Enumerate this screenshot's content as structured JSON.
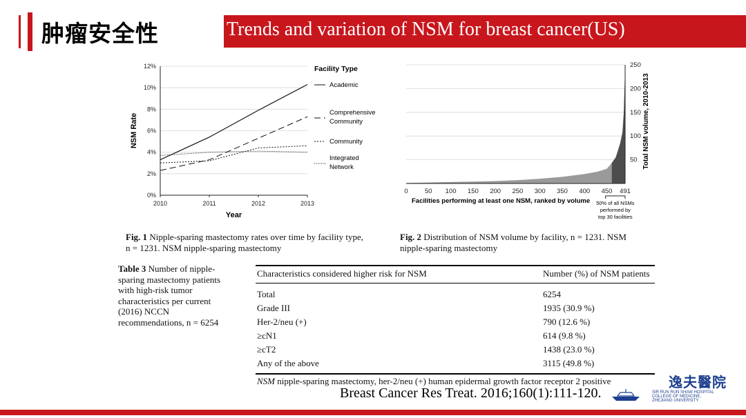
{
  "header": {
    "title_cn": "肿瘤安全性",
    "title_en": "Trends and variation of NSM for breast cancer(US)"
  },
  "colors": {
    "accent": "#c8161d",
    "logo_blue": "#1d3f8f"
  },
  "fig1": {
    "caption_bold": "Fig. 1",
    "caption_text": "Nipple-sparing mastectomy rates over time by facility type,",
    "caption_line2": "n = 1231. NSM nipple-sparing mastectomy",
    "legend_title": "Facility Type",
    "legend": [
      {
        "line1": "Academic",
        "line2": ""
      },
      {
        "line1": "Comprehensive",
        "line2": "Community"
      },
      {
        "line1": "Community",
        "line2": ""
      },
      {
        "line1": "Integrated",
        "line2": "Network"
      }
    ]
  },
  "fig2": {
    "caption_bold": "Fig. 2",
    "caption_text": "Distribution of NSM volume by facility, n = 1231. NSM",
    "caption_line2": "nipple-sparing mastectomy",
    "bracket_label": [
      "50% of all NSMs",
      "performed by",
      "top 30 facilities"
    ]
  },
  "chart_data": [
    {
      "type": "line",
      "xlabel": "Year",
      "ylabel": "NSM Rate",
      "x": [
        2010,
        2011,
        2012,
        2013
      ],
      "xticks": [
        "2010",
        "2011",
        "2012",
        "2013"
      ],
      "yticks": [
        "0%",
        "2%",
        "4%",
        "6%",
        "8%",
        "10%",
        "12%"
      ],
      "ylim": [
        0,
        12
      ],
      "grid": true,
      "legend_position": "right",
      "series": [
        {
          "name": "Academic",
          "style": "solid",
          "values": [
            3.3,
            5.4,
            7.9,
            10.3
          ]
        },
        {
          "name": "Comprehensive Community",
          "style": "dashed",
          "values": [
            2.3,
            3.3,
            5.3,
            7.3
          ]
        },
        {
          "name": "Community",
          "style": "dash-dot",
          "values": [
            3.0,
            3.2,
            4.4,
            4.6
          ]
        },
        {
          "name": "Integrated Network",
          "style": "dotted",
          "values": [
            3.7,
            4.0,
            4.1,
            4.0
          ]
        }
      ]
    },
    {
      "type": "area",
      "xlabel": "Facilities performing at least one NSM, ranked by volume",
      "ylabel": "Total NSM volume, 2010-2013",
      "xticks": [
        "0",
        "50",
        "100",
        "150",
        "200",
        "250",
        "300",
        "350",
        "400",
        "450",
        "491"
      ],
      "xtick_values": [
        0,
        50,
        100,
        150,
        200,
        250,
        300,
        350,
        400,
        450,
        491
      ],
      "yticks": [
        "50",
        "100",
        "150",
        "200",
        "250"
      ],
      "ylim": [
        0,
        250
      ],
      "xlim": [
        0,
        491
      ],
      "grid": true,
      "y_axis_side": "right",
      "highlight_from": 461,
      "curve_x": [
        0,
        50,
        100,
        150,
        200,
        250,
        300,
        350,
        400,
        430,
        450,
        460,
        470,
        475,
        480,
        485,
        488,
        491
      ],
      "curve_y": [
        1,
        2,
        3,
        4,
        5,
        7,
        10,
        14,
        20,
        25,
        31,
        42,
        55,
        70,
        85,
        108,
        150,
        245
      ]
    },
    {
      "type": "table",
      "caption_bold": "Table 3",
      "caption_text": "Number of nipple-sparing mastectomy patients with high-risk tumor characteristics per current (2016) NCCN recommendations, n = 6254",
      "columns": [
        "Characteristics considered higher risk for NSM",
        "Number (%) of NSM patients"
      ],
      "rows": [
        [
          "Total",
          "6254"
        ],
        [
          "Grade III",
          "1935 (30.9 %)"
        ],
        [
          "Her-2/neu (+)",
          "790 (12.6 %)"
        ],
        [
          "≥cN1",
          "614 (9.8 %)"
        ],
        [
          "≥cT2",
          "1438 (23.0 %)"
        ],
        [
          "Any of the above",
          "3115 (49.8 %)"
        ]
      ],
      "note_abbr": "NSM",
      "note_text": "nipple-sparing mastectomy, her-2/neu (+) human epidermal growth factor receptor 2 positive"
    }
  ],
  "citation": "Breast Cancer Res Treat. 2016;160(1):111-120.",
  "logo": {
    "name_cn": "逸夫醫院",
    "line1": "SIR RUN RUN SHAW HOSPITAL",
    "line2": "COLLEGE OF MEDICINE,",
    "line3": "ZHEJIANG UNIVERSITY"
  }
}
